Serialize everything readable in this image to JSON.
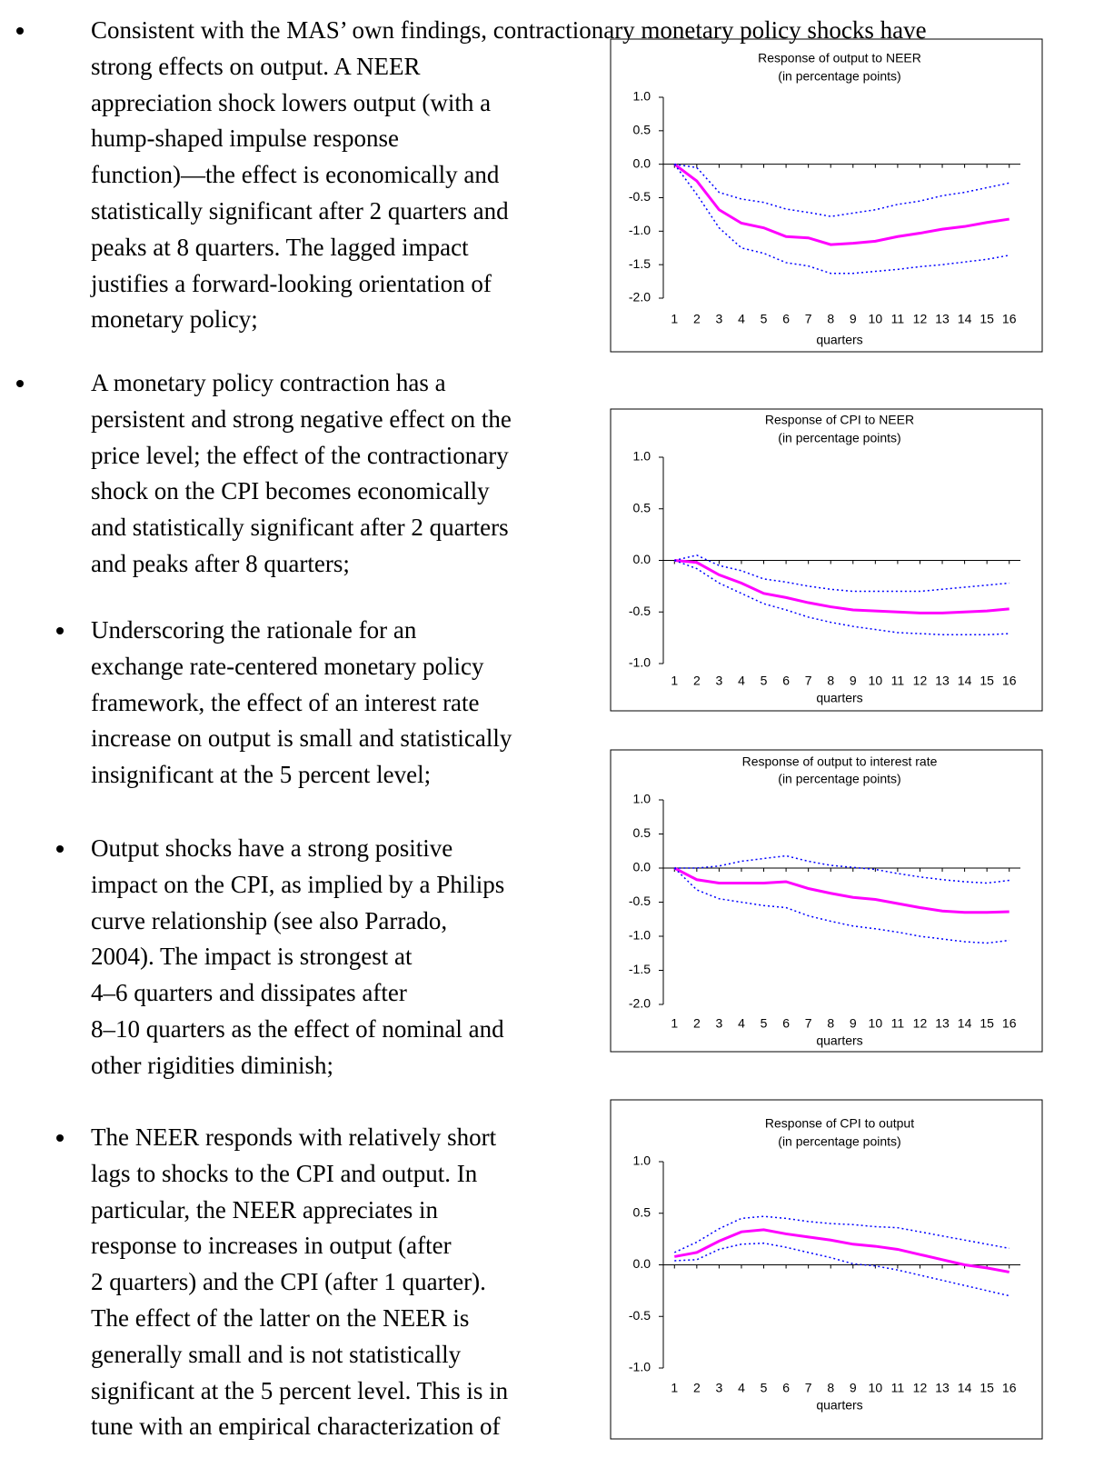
{
  "text": {
    "paragraphs": [
      {
        "lines": [
          "Consistent with the MAS’ own findings, contractionary monetary policy shocks have",
          "strong effects on output. A NEER",
          "appreciation shock lowers output (with a",
          "hump-shaped impulse response",
          "function)—the effect is economically and",
          "statistically significant after 2 quarters and",
          "peaks at 8 quarters. The lagged impact",
          "justifies a forward-looking orientation of",
          "monetary policy;"
        ]
      },
      {
        "lines": [
          "A monetary policy contraction has a",
          "persistent and strong negative effect on the",
          "price level; the effect of the contractionary",
          "shock on the CPI becomes economically",
          "and statistically significant after 2 quarters",
          "and peaks after 8 quarters;"
        ]
      },
      {
        "lines": [
          "Underscoring the rationale for an",
          "exchange rate-centered monetary policy",
          "framework, the effect of an interest rate",
          "increase on output is small and statistically",
          "insignificant at the 5 percent level;"
        ]
      },
      {
        "lines": [
          "Output shocks have a strong positive",
          "impact on the CPI, as implied by a Philips",
          "curve relationship (see also Parrado,",
          "2004). The impact is strongest at",
          "4–6 quarters and dissipates after",
          "8–10 quarters as the effect of nominal and",
          "other rigidities diminish;"
        ]
      },
      {
        "lines": [
          "The NEER responds with relatively short",
          "lags to shocks to the CPI and output. In",
          "particular, the NEER appreciates in",
          "response to increases in output (after",
          "2 quarters) and the CPI (after 1 quarter).",
          "The effect of the latter on the NEER is",
          "generally small and is not statistically",
          "significant at the 5 percent level. This is in",
          "tune with an empirical characterization of"
        ]
      }
    ]
  },
  "chart_data": [
    {
      "type": "line",
      "title": "Response of output to NEER",
      "subtitle": "(in percentage points)",
      "x_label": "quarters",
      "x": [
        1,
        2,
        3,
        4,
        5,
        6,
        7,
        8,
        9,
        10,
        11,
        12,
        13,
        14,
        15,
        16
      ],
      "xlim": [
        0.5,
        16.5
      ],
      "xticks": [
        1,
        2,
        3,
        4,
        5,
        6,
        7,
        8,
        9,
        10,
        11,
        12,
        13,
        14,
        15,
        16
      ],
      "ylim": [
        -2,
        1
      ],
      "yticks": [
        {
          "value": -2,
          "label": "-2.0"
        },
        -1.5,
        {
          "value": -1,
          "label": "-1.0"
        },
        -0.5,
        {
          "value": 0,
          "label": "0.0"
        },
        0.5,
        {
          "value": 1,
          "label": "1.0"
        }
      ],
      "series": [
        {
          "color": "#ff00ff",
          "style": "solid",
          "values": [
            0,
            -0.25,
            -0.68,
            -0.88,
            -0.95,
            -1.08,
            -1.1,
            -1.2,
            -1.18,
            -1.15,
            -1.08,
            -1.03,
            -0.97,
            -0.93,
            -0.87,
            -0.82
          ]
        },
        {
          "color": "#0000ff",
          "style": "dotted",
          "values": [
            0,
            -0.05,
            -0.42,
            -0.52,
            -0.57,
            -0.67,
            -0.72,
            -0.78,
            -0.73,
            -0.68,
            -0.6,
            -0.55,
            -0.47,
            -0.42,
            -0.35,
            -0.28
          ]
        },
        {
          "color": "#0000ff",
          "style": "dotted",
          "values": [
            0,
            -0.45,
            -0.95,
            -1.25,
            -1.33,
            -1.47,
            -1.52,
            -1.63,
            -1.63,
            -1.6,
            -1.57,
            -1.53,
            -1.5,
            -1.46,
            -1.42,
            -1.36
          ]
        }
      ]
    },
    {
      "type": "line",
      "title": "Response of CPI to NEER",
      "subtitle": "(in percentage points)",
      "x_label": "quarters",
      "x": [
        1,
        2,
        3,
        4,
        5,
        6,
        7,
        8,
        9,
        10,
        11,
        12,
        13,
        14,
        15,
        16
      ],
      "xlim": [
        0.5,
        16.5
      ],
      "xticks": [
        1,
        2,
        3,
        4,
        5,
        6,
        7,
        8,
        9,
        10,
        11,
        12,
        13,
        14,
        15,
        16
      ],
      "ylim": [
        -1,
        1
      ],
      "yticks": [
        {
          "value": -1,
          "label": "-1.0"
        },
        -0.5,
        {
          "value": 0,
          "label": "0.0"
        },
        0.5,
        {
          "value": 1,
          "label": "1.0"
        }
      ],
      "series": [
        {
          "color": "#ff00ff",
          "style": "solid",
          "values": [
            0,
            -0.02,
            -0.14,
            -0.22,
            -0.32,
            -0.36,
            -0.41,
            -0.45,
            -0.48,
            -0.49,
            -0.5,
            -0.51,
            -0.51,
            -0.5,
            -0.49,
            -0.47
          ]
        },
        {
          "color": "#0000ff",
          "style": "dotted",
          "values": [
            0,
            0.05,
            -0.05,
            -0.1,
            -0.18,
            -0.21,
            -0.25,
            -0.28,
            -0.3,
            -0.3,
            -0.3,
            -0.3,
            -0.28,
            -0.26,
            -0.24,
            -0.22
          ]
        },
        {
          "color": "#0000ff",
          "style": "dotted",
          "values": [
            0,
            -0.08,
            -0.22,
            -0.32,
            -0.42,
            -0.48,
            -0.55,
            -0.6,
            -0.64,
            -0.67,
            -0.7,
            -0.71,
            -0.72,
            -0.72,
            -0.72,
            -0.71
          ]
        }
      ]
    },
    {
      "type": "line",
      "title": "Response of output to interest rate",
      "subtitle": "(in percentage points)",
      "x_label": "quarters",
      "x": [
        1,
        2,
        3,
        4,
        5,
        6,
        7,
        8,
        9,
        10,
        11,
        12,
        13,
        14,
        15,
        16
      ],
      "xlim": [
        0.5,
        16.5
      ],
      "xticks": [
        1,
        2,
        3,
        4,
        5,
        6,
        7,
        8,
        9,
        10,
        11,
        12,
        13,
        14,
        15,
        16
      ],
      "ylim": [
        -2,
        1
      ],
      "yticks": [
        {
          "value": -2,
          "label": "-2.0"
        },
        -1.5,
        {
          "value": -1,
          "label": "-1.0"
        },
        -0.5,
        {
          "value": 0,
          "label": "0.0"
        },
        0.5,
        {
          "value": 1,
          "label": "1.0"
        }
      ],
      "series": [
        {
          "color": "#ff00ff",
          "style": "solid",
          "values": [
            0,
            -0.17,
            -0.22,
            -0.22,
            -0.22,
            -0.2,
            -0.3,
            -0.37,
            -0.43,
            -0.46,
            -0.52,
            -0.58,
            -0.63,
            -0.65,
            -0.65,
            -0.64
          ]
        },
        {
          "color": "#0000ff",
          "style": "dotted",
          "values": [
            0,
            0,
            0.03,
            0.1,
            0.14,
            0.18,
            0.1,
            0.04,
            0.01,
            -0.02,
            -0.08,
            -0.13,
            -0.17,
            -0.2,
            -0.22,
            -0.18
          ]
        },
        {
          "color": "#0000ff",
          "style": "dotted",
          "values": [
            0,
            -0.32,
            -0.45,
            -0.5,
            -0.55,
            -0.58,
            -0.7,
            -0.78,
            -0.85,
            -0.89,
            -0.94,
            -1,
            -1.04,
            -1.08,
            -1.1,
            -1.06
          ]
        }
      ]
    },
    {
      "type": "line",
      "title": "Response of CPI to output",
      "subtitle": "(in percentage points)",
      "x_label": "quarters",
      "x": [
        1,
        2,
        3,
        4,
        5,
        6,
        7,
        8,
        9,
        10,
        11,
        12,
        13,
        14,
        15,
        16
      ],
      "xlim": [
        0.5,
        16.5
      ],
      "xticks": [
        1,
        2,
        3,
        4,
        5,
        6,
        7,
        8,
        9,
        10,
        11,
        12,
        13,
        14,
        15,
        16
      ],
      "ylim": [
        -1,
        1
      ],
      "yticks": [
        {
          "value": -1,
          "label": "-1.0"
        },
        -0.5,
        {
          "value": 0,
          "label": "0.0"
        },
        0.5,
        {
          "value": 1,
          "label": "1.0"
        }
      ],
      "series": [
        {
          "color": "#ff00ff",
          "style": "solid",
          "values": [
            0.08,
            0.12,
            0.23,
            0.32,
            0.34,
            0.3,
            0.27,
            0.24,
            0.2,
            0.18,
            0.15,
            0.1,
            0.05,
            0,
            -0.03,
            -0.07
          ]
        },
        {
          "color": "#0000ff",
          "style": "dotted",
          "values": [
            0.12,
            0.22,
            0.35,
            0.45,
            0.47,
            0.45,
            0.42,
            0.4,
            0.39,
            0.37,
            0.36,
            0.32,
            0.28,
            0.24,
            0.2,
            0.16
          ]
        },
        {
          "color": "#0000ff",
          "style": "dotted",
          "values": [
            0.04,
            0.05,
            0.15,
            0.2,
            0.21,
            0.17,
            0.12,
            0.07,
            0.01,
            -0.01,
            -0.05,
            -0.1,
            -0.15,
            -0.2,
            -0.25,
            -0.3
          ]
        }
      ]
    }
  ]
}
